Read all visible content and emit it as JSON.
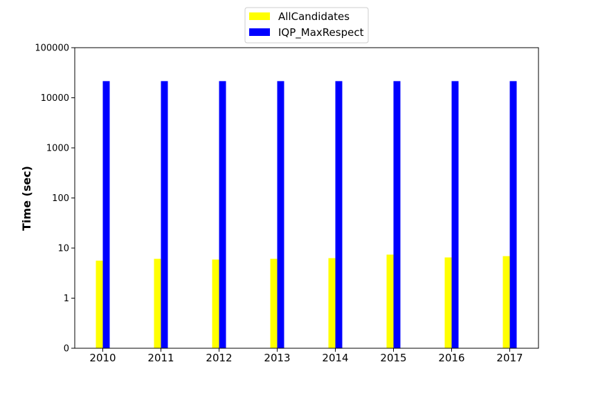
{
  "chart_data": {
    "type": "bar",
    "categories": [
      "2010",
      "2011",
      "2012",
      "2013",
      "2014",
      "2015",
      "2016",
      "2017"
    ],
    "series": [
      {
        "name": "AllCandidates",
        "color": "#ffff00",
        "values": [
          5.6,
          6.1,
          5.9,
          6.1,
          6.3,
          7.4,
          6.5,
          6.9
        ]
      },
      {
        "name": "IQP_MaxRespect",
        "color": "#0000ff",
        "values": [
          21500,
          21500,
          21500,
          21500,
          21500,
          21500,
          21500,
          21500
        ]
      }
    ],
    "xlabel": "",
    "ylabel": "Time (sec)",
    "yscale": "log",
    "ylim": [
      0.1,
      100000
    ],
    "yticks": [
      {
        "value": 0.1,
        "label": "0"
      },
      {
        "value": 1,
        "label": "1"
      },
      {
        "value": 10,
        "label": "10"
      },
      {
        "value": 100,
        "label": "100"
      },
      {
        "value": 1000,
        "label": "1000"
      },
      {
        "value": 10000,
        "label": "10000"
      },
      {
        "value": 100000,
        "label": "100000"
      }
    ],
    "grid": false,
    "legend_position": "top-center"
  }
}
